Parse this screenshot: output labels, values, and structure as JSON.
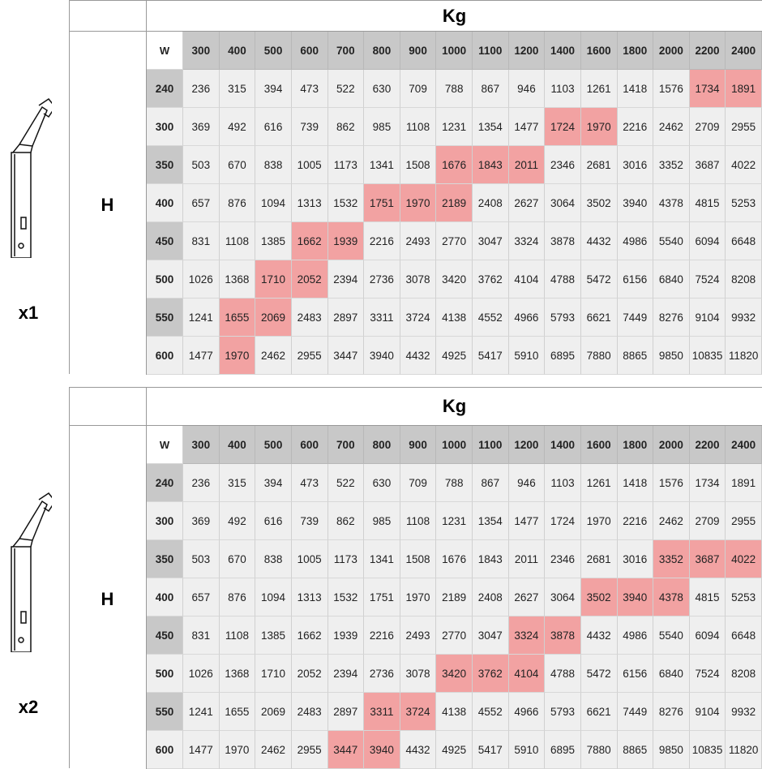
{
  "tables": [
    {
      "unit_label": "Kg",
      "row_axis_label": "H",
      "multiplier": "x1",
      "corner_label": "W",
      "columns": [
        "300",
        "400",
        "500",
        "600",
        "700",
        "800",
        "900",
        "1000",
        "1100",
        "1200",
        "1400",
        "1600",
        "1800",
        "2000",
        "2200",
        "2400"
      ],
      "rows": [
        {
          "h": "240",
          "values": [
            "236",
            "315",
            "394",
            "473",
            "522",
            "630",
            "709",
            "788",
            "867",
            "946",
            "1103",
            "1261",
            "1418",
            "1576",
            "1734",
            "1891"
          ],
          "highlight": [
            14,
            15
          ]
        },
        {
          "h": "300",
          "values": [
            "369",
            "492",
            "616",
            "739",
            "862",
            "985",
            "1108",
            "1231",
            "1354",
            "1477",
            "1724",
            "1970",
            "2216",
            "2462",
            "2709",
            "2955"
          ],
          "highlight": [
            10,
            11
          ]
        },
        {
          "h": "350",
          "values": [
            "503",
            "670",
            "838",
            "1005",
            "1173",
            "1341",
            "1508",
            "1676",
            "1843",
            "2011",
            "2346",
            "2681",
            "3016",
            "3352",
            "3687",
            "4022"
          ],
          "highlight": [
            7,
            8,
            9
          ]
        },
        {
          "h": "400",
          "values": [
            "657",
            "876",
            "1094",
            "1313",
            "1532",
            "1751",
            "1970",
            "2189",
            "2408",
            "2627",
            "3064",
            "3502",
            "3940",
            "4378",
            "4815",
            "5253"
          ],
          "highlight": [
            5,
            6,
            7
          ]
        },
        {
          "h": "450",
          "values": [
            "831",
            "1108",
            "1385",
            "1662",
            "1939",
            "2216",
            "2493",
            "2770",
            "3047",
            "3324",
            "3878",
            "4432",
            "4986",
            "5540",
            "6094",
            "6648"
          ],
          "highlight": [
            3,
            4
          ]
        },
        {
          "h": "500",
          "values": [
            "1026",
            "1368",
            "1710",
            "2052",
            "2394",
            "2736",
            "3078",
            "3420",
            "3762",
            "4104",
            "4788",
            "5472",
            "6156",
            "6840",
            "7524",
            "8208"
          ],
          "highlight": [
            2,
            3
          ]
        },
        {
          "h": "550",
          "values": [
            "1241",
            "1655",
            "2069",
            "2483",
            "2897",
            "3311",
            "3724",
            "4138",
            "4552",
            "4966",
            "5793",
            "6621",
            "7449",
            "8276",
            "9104",
            "9932"
          ],
          "highlight": [
            1,
            2
          ]
        },
        {
          "h": "600",
          "values": [
            "1477",
            "1970",
            "2462",
            "2955",
            "3447",
            "3940",
            "4432",
            "4925",
            "5417",
            "5910",
            "6895",
            "7880",
            "8865",
            "9850",
            "10835",
            "11820"
          ],
          "highlight": [
            1
          ]
        }
      ]
    },
    {
      "unit_label": "Kg",
      "row_axis_label": "H",
      "multiplier": "x2",
      "corner_label": "W",
      "columns": [
        "300",
        "400",
        "500",
        "600",
        "700",
        "800",
        "900",
        "1000",
        "1100",
        "1200",
        "1400",
        "1600",
        "1800",
        "2000",
        "2200",
        "2400"
      ],
      "rows": [
        {
          "h": "240",
          "values": [
            "236",
            "315",
            "394",
            "473",
            "522",
            "630",
            "709",
            "788",
            "867",
            "946",
            "1103",
            "1261",
            "1418",
            "1576",
            "1734",
            "1891"
          ],
          "highlight": []
        },
        {
          "h": "300",
          "values": [
            "369",
            "492",
            "616",
            "739",
            "862",
            "985",
            "1108",
            "1231",
            "1354",
            "1477",
            "1724",
            "1970",
            "2216",
            "2462",
            "2709",
            "2955"
          ],
          "highlight": []
        },
        {
          "h": "350",
          "values": [
            "503",
            "670",
            "838",
            "1005",
            "1173",
            "1341",
            "1508",
            "1676",
            "1843",
            "2011",
            "2346",
            "2681",
            "3016",
            "3352",
            "3687",
            "4022"
          ],
          "highlight": [
            13,
            14,
            15
          ]
        },
        {
          "h": "400",
          "values": [
            "657",
            "876",
            "1094",
            "1313",
            "1532",
            "1751",
            "1970",
            "2189",
            "2408",
            "2627",
            "3064",
            "3502",
            "3940",
            "4378",
            "4815",
            "5253"
          ],
          "highlight": [
            11,
            12,
            13
          ]
        },
        {
          "h": "450",
          "values": [
            "831",
            "1108",
            "1385",
            "1662",
            "1939",
            "2216",
            "2493",
            "2770",
            "3047",
            "3324",
            "3878",
            "4432",
            "4986",
            "5540",
            "6094",
            "6648"
          ],
          "highlight": [
            9,
            10
          ]
        },
        {
          "h": "500",
          "values": [
            "1026",
            "1368",
            "1710",
            "2052",
            "2394",
            "2736",
            "3078",
            "3420",
            "3762",
            "4104",
            "4788",
            "5472",
            "6156",
            "6840",
            "7524",
            "8208"
          ],
          "highlight": [
            7,
            8,
            9
          ]
        },
        {
          "h": "550",
          "values": [
            "1241",
            "1655",
            "2069",
            "2483",
            "2897",
            "3311",
            "3724",
            "4138",
            "4552",
            "4966",
            "5793",
            "6621",
            "7449",
            "8276",
            "9104",
            "9932"
          ],
          "highlight": [
            5,
            6
          ]
        },
        {
          "h": "600",
          "values": [
            "1477",
            "1970",
            "2462",
            "2955",
            "3447",
            "3940",
            "4432",
            "4925",
            "5417",
            "5910",
            "6895",
            "7880",
            "8865",
            "9850",
            "10835",
            "11820"
          ],
          "highlight": [
            4,
            5
          ]
        }
      ]
    }
  ],
  "colors": {
    "header": "#c8c8c8",
    "cell": "#efefef",
    "highlight": "#f2a2a2"
  }
}
